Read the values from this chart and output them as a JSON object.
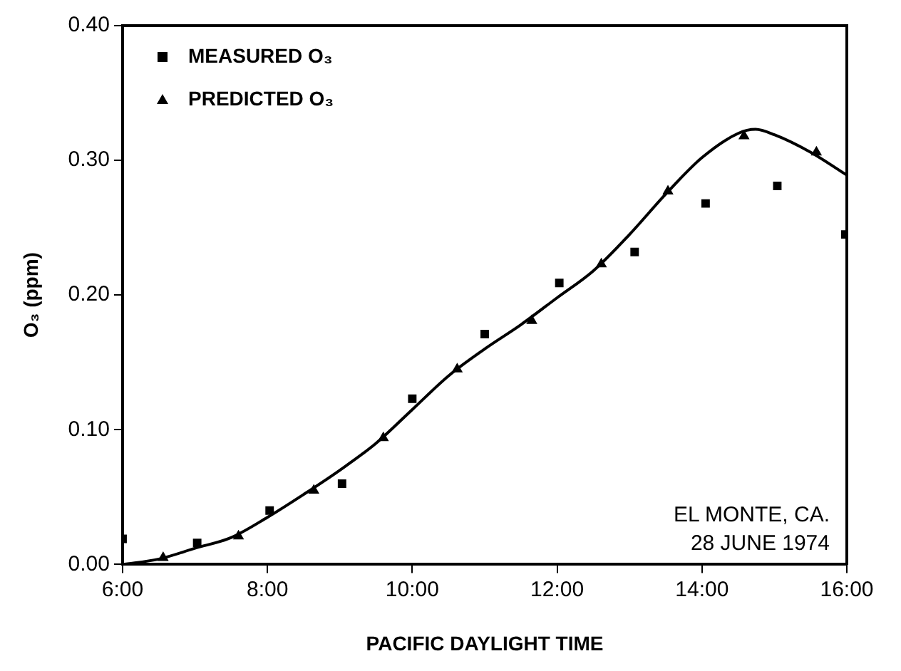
{
  "chart_data": {
    "type": "scatter",
    "xlabel": "PACIFIC DAYLIGHT TIME",
    "ylabel": "O₃ (ppm)",
    "xlim": [
      6,
      16
    ],
    "xticks": [
      {
        "value": 6,
        "label": "6:00"
      },
      {
        "value": 8,
        "label": "8:00"
      },
      {
        "value": 10,
        "label": "10:00"
      },
      {
        "value": 12,
        "label": "12:00"
      },
      {
        "value": 14,
        "label": "14:00"
      },
      {
        "value": 16,
        "label": "16:00"
      }
    ],
    "ylim": [
      0,
      0.4
    ],
    "yticks": [
      {
        "value": 0,
        "label": "0.00"
      },
      {
        "value": 0.1,
        "label": "0.10"
      },
      {
        "value": 0.2,
        "label": "0.20"
      },
      {
        "value": 0.3,
        "label": "0.30"
      },
      {
        "value": 0.4,
        "label": "0.40"
      }
    ],
    "grid": false,
    "legend": "top left",
    "annotations": [
      "EL MONTE, CA.",
      "28 JUNE 1974"
    ],
    "series": [
      {
        "name": "MEASURED O₃",
        "type": "scatter",
        "marker": "square",
        "color": "#000000",
        "x": [
          6.0,
          7.03,
          8.03,
          9.03,
          10.0,
          11.0,
          12.03,
          13.07,
          14.05,
          15.04,
          15.98
        ],
        "values": [
          0.019,
          0.016,
          0.04,
          0.06,
          0.123,
          0.171,
          0.209,
          0.232,
          0.268,
          0.281,
          0.245
        ]
      },
      {
        "name": "PREDICTED O₃",
        "type": "scatter",
        "marker": "triangle",
        "color": "#000000",
        "x": [
          6.56,
          7.6,
          8.64,
          9.6,
          10.62,
          11.65,
          12.61,
          13.53,
          14.58,
          15.58
        ],
        "values": [
          0.005,
          0.021,
          0.055,
          0.094,
          0.145,
          0.181,
          0.223,
          0.277,
          0.318,
          0.306
        ]
      },
      {
        "type": "line",
        "marker": "none",
        "line_style": "solid",
        "color": "#000000",
        "x": [
          6.0,
          6.5,
          7.0,
          7.5,
          8.0,
          8.5,
          9.0,
          9.5,
          10.0,
          10.5,
          11.0,
          11.5,
          12.0,
          12.5,
          13.0,
          13.5,
          14.0,
          14.5,
          14.74,
          15.0,
          15.5,
          16.0
        ],
        "values": [
          0.0,
          0.004,
          0.012,
          0.02,
          0.035,
          0.052,
          0.07,
          0.09,
          0.115,
          0.14,
          0.16,
          0.178,
          0.198,
          0.218,
          0.245,
          0.275,
          0.302,
          0.32,
          0.323,
          0.319,
          0.306,
          0.289
        ]
      }
    ]
  }
}
